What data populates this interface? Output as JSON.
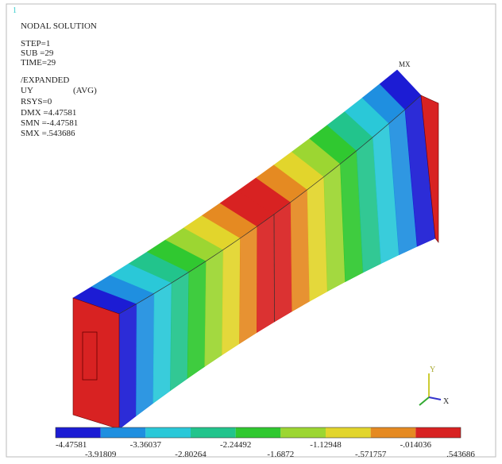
{
  "viewport": {
    "number": "1"
  },
  "info": {
    "title": "NODAL SOLUTION",
    "lines": [
      "STEP=1",
      "SUB =29",
      "TIME=29",
      "/EXPANDED"
    ],
    "quantity": "UY",
    "avg": "(AVG)",
    "more": [
      "RSYS=0",
      "DMX =4.47581",
      "SMN =-4.47581",
      "SMX =.543686"
    ]
  },
  "max_label": "MX",
  "triad": {
    "y": "Y",
    "x": "X"
  },
  "legend": {
    "colors": [
      "#1c1cd4",
      "#1f8fe0",
      "#2ac8d8",
      "#22c48c",
      "#30c830",
      "#9cd632",
      "#e2d52c",
      "#e58a22",
      "#d82222"
    ],
    "labels": [
      "-4.47581",
      "-3.91809",
      "-3.36037",
      "-2.80264",
      "-2.24492",
      "-1.6872",
      "-1.12948",
      "-.571757",
      "-.014036",
      ".543686"
    ]
  }
}
